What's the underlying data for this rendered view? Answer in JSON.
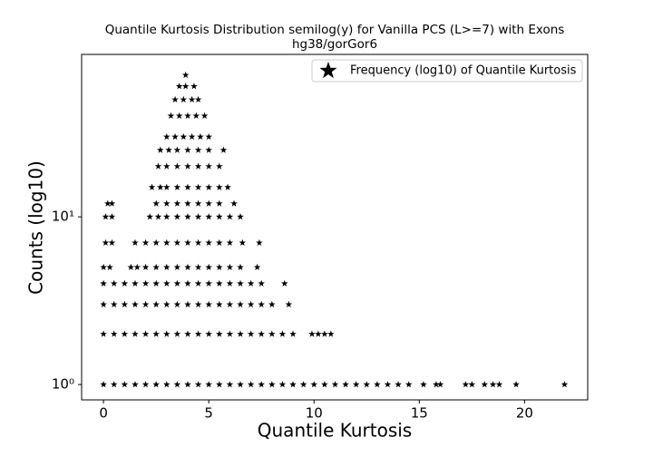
{
  "chart_data": {
    "type": "scatter",
    "title": "Quantile Kurtosis Distribution semilog(y) for Vanilla PCS (L>=7) with Exons",
    "subtitle": "hg38/gorGor6",
    "x_label": "Quantile Kurtosis",
    "y_label": "Counts (log10)",
    "y_scale": "log",
    "legend_position": "upper right",
    "series": [
      {
        "name": "Frequency (log10) of Quantile Kurtosis",
        "color": "#000000",
        "marker": "star",
        "x": [
          0,
          0.5,
          1,
          1.5,
          2,
          2.5,
          3,
          3.5,
          4,
          4.5,
          5,
          5.5,
          6,
          6.5,
          7,
          7.5,
          8,
          8.5,
          9,
          9.5,
          10,
          10.5,
          11,
          11.5,
          12,
          12.5,
          13,
          13.5,
          14,
          14.5,
          15.2,
          15.8,
          16,
          17.2,
          17.5,
          18.1,
          18.5,
          18.8,
          19.6,
          21.9,
          0,
          0.5,
          1,
          1.5,
          2,
          2.5,
          3,
          3.5,
          4,
          4.5,
          5,
          5.5,
          6,
          6.5,
          7,
          7.5,
          8,
          8.5,
          9,
          9.9,
          10.2,
          10.5,
          10.8,
          0,
          0.5,
          1,
          1.5,
          2,
          2.5,
          3,
          3.5,
          4,
          4.5,
          5,
          5.5,
          6,
          6.5,
          7,
          7.5,
          8,
          8.8,
          0,
          0.5,
          1,
          1.5,
          2,
          2.5,
          3,
          3.5,
          4,
          4.5,
          5,
          5.5,
          6,
          6.5,
          7,
          7.5,
          8.6,
          0,
          0.3,
          1.3,
          1.6,
          2,
          2.5,
          3,
          3.5,
          4,
          4.5,
          5,
          5.5,
          6,
          6.5,
          7.3,
          0.1,
          0.4,
          1.5,
          2,
          2.5,
          3,
          3.5,
          4,
          4.5,
          5,
          5.5,
          6,
          6.6,
          7.4,
          0.1,
          0.4,
          2.2,
          2.6,
          3,
          3.5,
          4,
          4.5,
          5,
          5.5,
          6,
          6.5,
          0.2,
          0.4,
          2.5,
          3,
          3.5,
          4,
          4.5,
          5,
          5.5,
          6.2,
          2.3,
          2.7,
          3,
          3.5,
          4,
          4.5,
          5,
          5.5,
          5.9,
          2.6,
          3,
          3.5,
          4,
          4.5,
          5,
          5.5,
          2.7,
          3.1,
          3.5,
          4,
          4.5,
          5,
          5.7,
          3,
          3.4,
          3.8,
          4.2,
          4.6,
          5,
          3.2,
          3.6,
          4,
          4.4,
          4.8,
          3.4,
          3.8,
          4.2,
          4.5,
          3.6,
          3.9,
          4.3,
          3.9
        ],
        "values": [
          1,
          1,
          1,
          1,
          1,
          1,
          1,
          1,
          1,
          1,
          1,
          1,
          1,
          1,
          1,
          1,
          1,
          1,
          1,
          1,
          1,
          1,
          1,
          1,
          1,
          1,
          1,
          1,
          1,
          1,
          1,
          1,
          1,
          1,
          1,
          1,
          1,
          1,
          1,
          1,
          2,
          2,
          2,
          2,
          2,
          2,
          2,
          2,
          2,
          2,
          2,
          2,
          2,
          2,
          2,
          2,
          2,
          2,
          2,
          2,
          2,
          2,
          2,
          3,
          3,
          3,
          3,
          3,
          3,
          3,
          3,
          3,
          3,
          3,
          3,
          3,
          3,
          3,
          3,
          3,
          3,
          4,
          4,
          4,
          4,
          4,
          4,
          4,
          4,
          4,
          4,
          4,
          4,
          4,
          4,
          4,
          4,
          4,
          5,
          5,
          5,
          5,
          5,
          5,
          5,
          5,
          5,
          5,
          5,
          5,
          5,
          5,
          5,
          7,
          7,
          7,
          7,
          7,
          7,
          7,
          7,
          7,
          7,
          7,
          7,
          7,
          7,
          10,
          10,
          10,
          10,
          10,
          10,
          10,
          10,
          10,
          10,
          10,
          10,
          12,
          12,
          12,
          12,
          12,
          12,
          12,
          12,
          12,
          12,
          15,
          15,
          15,
          15,
          15,
          15,
          15,
          15,
          15,
          20,
          20,
          20,
          20,
          20,
          20,
          20,
          25,
          25,
          25,
          25,
          25,
          25,
          25,
          30,
          30,
          30,
          30,
          30,
          30,
          40,
          40,
          40,
          40,
          40,
          50,
          50,
          50,
          50,
          60,
          60,
          60,
          70
        ]
      }
    ],
    "xlim": [
      -1.04,
      23.0
    ],
    "ylim": [
      0.81,
      93
    ],
    "xticks": [
      0,
      5,
      10,
      15,
      20
    ],
    "yticks": [
      {
        "value": 1,
        "label": "10⁰"
      },
      {
        "value": 10,
        "label": "10¹"
      }
    ]
  }
}
